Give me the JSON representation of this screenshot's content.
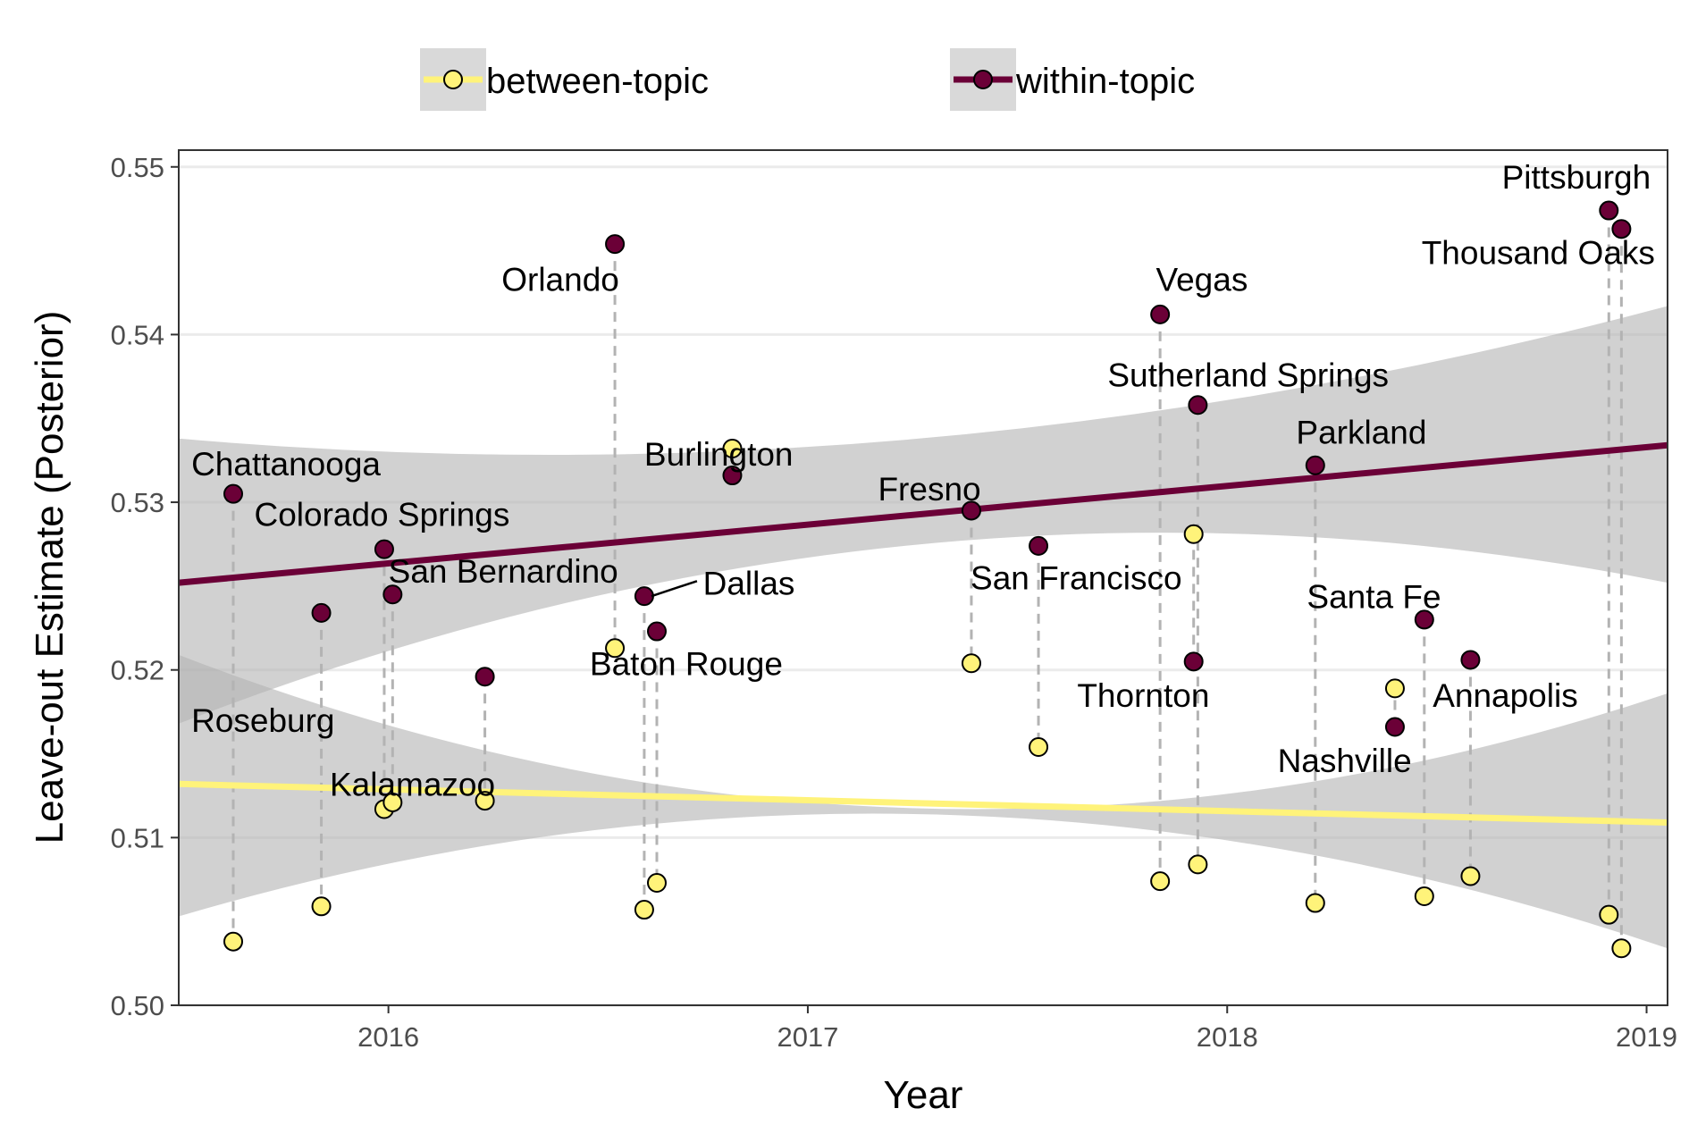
{
  "chart_data": {
    "type": "scatter",
    "xlabel": "Year",
    "ylabel": "Leave-out Estimate (Posterior)",
    "xlim": [
      2015.5,
      2019.05
    ],
    "ylim": [
      0.5,
      0.551
    ],
    "x_ticks": [
      2016,
      2017,
      2018,
      2019
    ],
    "x_tick_labels": [
      "2016",
      "2017",
      "2018",
      "2019"
    ],
    "y_ticks": [
      0.5,
      0.51,
      0.52,
      0.53,
      0.54,
      0.55
    ],
    "y_tick_labels": [
      "0.50",
      "0.51",
      "0.52",
      "0.53",
      "0.54",
      "0.55"
    ],
    "grid": true,
    "legend_position": "top",
    "colors": {
      "between": "#fff37a",
      "within": "#6b0037",
      "band": "#b3b3b3",
      "grid": "#ebebeb",
      "connector": "#b3b3b3"
    },
    "series": [
      {
        "name": "between-topic",
        "key": "between"
      },
      {
        "name": "within-topic",
        "key": "within"
      }
    ],
    "trend_lines": {
      "between": {
        "x": [
          2015.5,
          2019.05
        ],
        "y": [
          0.5132,
          0.5109
        ],
        "ci_lower": [
          0.5053,
          0.5034
        ],
        "ci_upper": [
          0.5209,
          0.5186
        ],
        "ci_mid_x": 2017.8,
        "ci_mid_lower": 0.5105,
        "ci_mid_upper": 0.5121
      },
      "within": {
        "x": [
          2015.5,
          2019.05
        ],
        "y": [
          0.5252,
          0.5334
        ],
        "ci_lower": [
          0.5168,
          0.5252
        ],
        "ci_upper": [
          0.5338,
          0.5417
        ],
        "ci_mid_x": 2017.0,
        "ci_mid_lower": 0.5267,
        "ci_mid_upper": 0.5333
      }
    },
    "events": [
      {
        "name": "Chattanooga",
        "x": 2015.63,
        "within": 0.5305,
        "between": 0.5038,
        "label_x": 2015.53,
        "label_y": 0.5316,
        "anchor": "start"
      },
      {
        "name": "Roseburg",
        "x": 2015.84,
        "within": 0.5234,
        "between": 0.5059,
        "label_x": 2015.53,
        "label_y": 0.5163,
        "anchor": "start"
      },
      {
        "name": "Colorado Springs",
        "x": 2015.99,
        "within": 0.5272,
        "between": 0.5117,
        "label_x": 2015.68,
        "label_y": 0.5286,
        "anchor": "start"
      },
      {
        "name": "San Bernardino",
        "x": 2016.01,
        "within": 0.5245,
        "between": 0.5121,
        "label_x": 2016.0,
        "label_y": 0.5252,
        "anchor": "start"
      },
      {
        "name": "Kalamazoo",
        "x": 2016.23,
        "within": 0.5196,
        "between": 0.5122,
        "label_x": 2015.86,
        "label_y": 0.5125,
        "anchor": "start"
      },
      {
        "name": "Orlando",
        "x": 2016.54,
        "within": 0.5454,
        "between": 0.5213,
        "label_x": 2016.41,
        "label_y": 0.5426,
        "anchor": "middle"
      },
      {
        "name": "Dallas",
        "x": 2016.61,
        "within": 0.5244,
        "between": 0.5057,
        "label_x": 2016.75,
        "label_y": 0.5245,
        "anchor": "start",
        "leader_to_x": 2016.74,
        "leader_to_y": 0.5253
      },
      {
        "name": "Baton Rouge",
        "x": 2016.64,
        "within": 0.5223,
        "between": 0.5073,
        "label_x": 2016.48,
        "label_y": 0.5197,
        "anchor": "start"
      },
      {
        "name": "Burlington",
        "x": 2016.82,
        "within": 0.5316,
        "between": 0.5332,
        "label_x": 2016.61,
        "label_y": 0.5322,
        "anchor": "start"
      },
      {
        "name": "Fresno",
        "x": 2017.39,
        "within": 0.5295,
        "between": 0.5204,
        "label_x": 2017.29,
        "label_y": 0.5301,
        "anchor": "middle"
      },
      {
        "name": "San Francisco",
        "x": 2017.55,
        "within": 0.5274,
        "between": 0.5154,
        "label_x": 2017.64,
        "label_y": 0.5248,
        "anchor": "middle"
      },
      {
        "name": "Vegas",
        "x": 2017.84,
        "within": 0.5412,
        "between": 0.5074,
        "label_x": 2017.83,
        "label_y": 0.5426,
        "anchor": "start"
      },
      {
        "name": "Sutherland Springs",
        "x": 2017.93,
        "within": 0.5358,
        "between": 0.5084,
        "label_x": 2018.05,
        "label_y": 0.5369,
        "anchor": "middle"
      },
      {
        "name": "Thornton",
        "x": 2017.92,
        "within": 0.5205,
        "between": 0.5281,
        "label_x": 2017.8,
        "label_y": 0.5178,
        "anchor": "middle"
      },
      {
        "name": "Parkland",
        "x": 2018.21,
        "within": 0.5322,
        "between": 0.5061,
        "label_x": 2018.32,
        "label_y": 0.5335,
        "anchor": "middle"
      },
      {
        "name": "Santa Fe",
        "x": 2018.47,
        "within": 0.523,
        "between": 0.5065,
        "label_x": 2018.35,
        "label_y": 0.5237,
        "anchor": "middle"
      },
      {
        "name": "Nashville",
        "x": 2018.4,
        "within": 0.5166,
        "between": 0.5189,
        "label_x": 2018.28,
        "label_y": 0.5139,
        "anchor": "middle"
      },
      {
        "name": "Annapolis",
        "x": 2018.58,
        "within": 0.5206,
        "between": 0.5077,
        "label_x": 2018.49,
        "label_y": 0.5178,
        "anchor": "start"
      },
      {
        "name": "Pittsburgh",
        "x": 2018.91,
        "within": 0.5474,
        "between": 0.5054,
        "label_x": 2019.01,
        "label_y": 0.5487,
        "anchor": "end"
      },
      {
        "name": "Thousand Oaks",
        "x": 2018.94,
        "within": 0.5463,
        "between": 0.5034,
        "label_x": 2019.02,
        "label_y": 0.5442,
        "anchor": "end"
      }
    ]
  }
}
